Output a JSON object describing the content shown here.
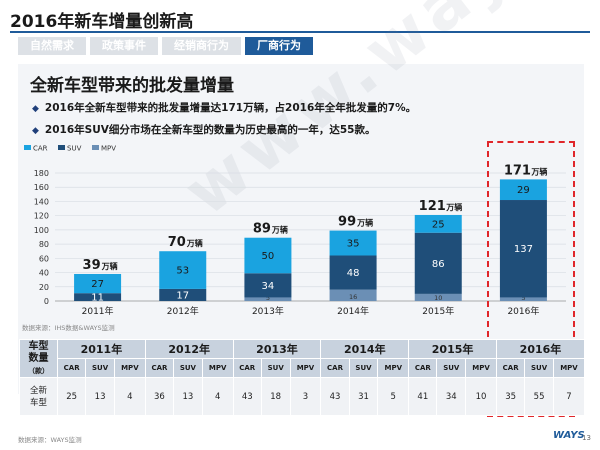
{
  "page": {
    "title": "2016年新车增量创新高",
    "tabs": [
      {
        "label": "自然需求",
        "active": false
      },
      {
        "label": "政策事件",
        "active": false
      },
      {
        "label": "经销商行为",
        "active": false
      },
      {
        "label": "厂商行为",
        "active": true
      }
    ],
    "section_title": "全新车型带来的批发量增量",
    "bullets": [
      "2016年全新车型带来的批发量增量达171万辆，占2016年全年批发量的7%。",
      "2016年SUV细分市场在全新车型的数量为历史最高的一年，达55款。"
    ],
    "source_chart": "数据来源：IHS数据&WAYS监测",
    "source_footer": "数据来源：WAYS监测",
    "brand": "WAYS",
    "page_number": "13",
    "watermark": "www.ways.cn",
    "colors": {
      "car": "#1aa3e0",
      "suv": "#1f4e79",
      "mpv": "#6b8fb5",
      "highlight": "#e0262a"
    }
  },
  "chart_data": {
    "type": "bar",
    "stacked": true,
    "categories": [
      "2011年",
      "2012年",
      "2013年",
      "2014年",
      "2015年",
      "2016年"
    ],
    "series": [
      {
        "name": "CAR",
        "values": [
          27,
          53,
          50,
          35,
          25,
          29
        ]
      },
      {
        "name": "SUV",
        "values": [
          11,
          17,
          34,
          48,
          86,
          137
        ]
      },
      {
        "name": "MPV",
        "values": [
          0,
          0,
          5,
          16,
          10,
          5
        ]
      }
    ],
    "segment_labels": {
      "CAR": [
        "27",
        "53",
        "50",
        "35",
        "25",
        "29"
      ],
      "SUV": [
        "11",
        "17",
        "34",
        "48",
        "86",
        "137"
      ],
      "MPV": [
        "0",
        "0",
        "5",
        "16",
        "10",
        "5"
      ]
    },
    "totals": [
      "39",
      "70",
      "89",
      "99",
      "121",
      "171"
    ],
    "total_unit": "万辆",
    "ylim": [
      0,
      180
    ],
    "yticks": [
      "0",
      "20",
      "40",
      "60",
      "80",
      "100",
      "120",
      "140",
      "160",
      "180"
    ],
    "legend_position": "top-left",
    "grid": true
  },
  "table": {
    "row_header": [
      "车型",
      "数量",
      "（款）"
    ],
    "years": [
      "2011年",
      "2012年",
      "2013年",
      "2014年",
      "2015年",
      "2016年"
    ],
    "subcols": [
      "CAR",
      "SUV",
      "MPV"
    ],
    "row_label": [
      "全新",
      "车型"
    ],
    "values": [
      [
        "25",
        "13",
        "4"
      ],
      [
        "36",
        "13",
        "4"
      ],
      [
        "43",
        "18",
        "3"
      ],
      [
        "43",
        "31",
        "5"
      ],
      [
        "41",
        "34",
        "10"
      ],
      [
        "35",
        "55",
        "7"
      ]
    ]
  }
}
